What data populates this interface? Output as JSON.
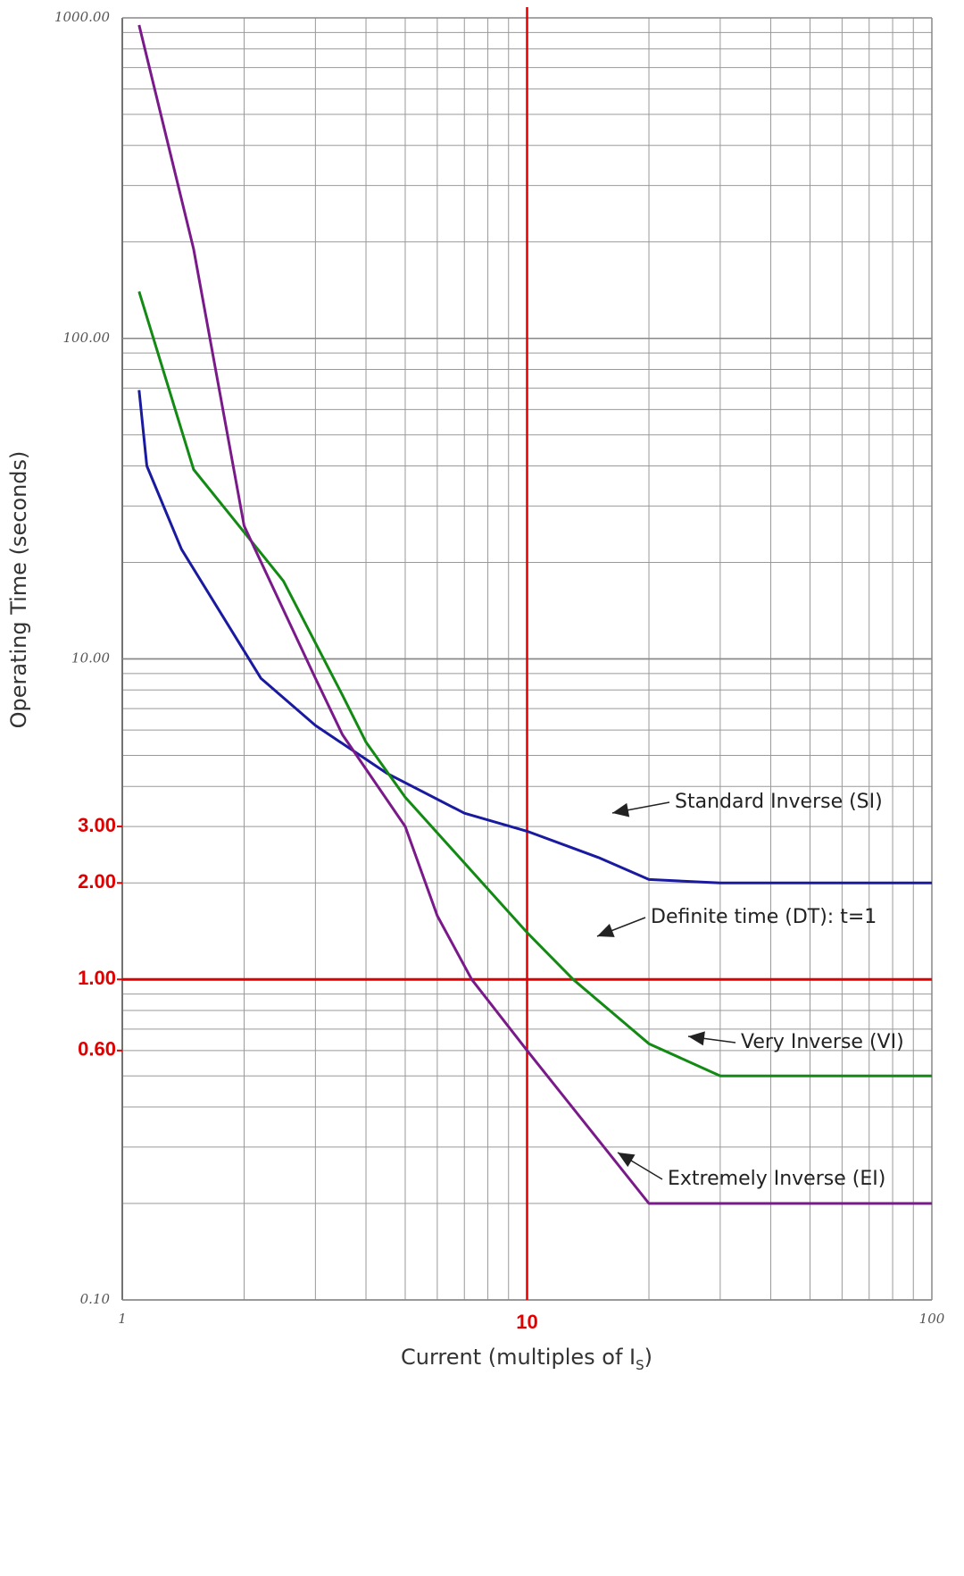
{
  "chart_data": {
    "type": "line",
    "xlabel": "Current (multiples of I",
    "xlabel_sub": "S",
    "xlabel_end": ")",
    "ylabel": "Operating Time (seconds)",
    "xscale": "log",
    "yscale": "log",
    "grid": true,
    "minor_grid": true,
    "xlim": [
      1,
      100
    ],
    "ylim": [
      0.1,
      1000
    ],
    "xticks": [
      1,
      100
    ],
    "highlight_xticks": [
      10
    ],
    "yticks": [
      {
        "value": 0.1,
        "label": "0.10"
      },
      {
        "value": 10,
        "label": "10.00"
      },
      {
        "value": 100,
        "label": "100.00"
      },
      {
        "value": 1000,
        "label": "1000.00"
      }
    ],
    "highlight_yticks": [
      {
        "value": 0.6,
        "label": "0.60"
      },
      {
        "value": 1,
        "label": "1.00"
      },
      {
        "value": 2,
        "label": "2.00"
      },
      {
        "value": 3,
        "label": "3.00"
      }
    ],
    "highlight_color": "#e00000",
    "series": [
      {
        "name": "Standard Inverse (SI)",
        "color": "#1a1aa0",
        "x": [
          1.1,
          1.15,
          1.4,
          2.2,
          3,
          4.5,
          7,
          10,
          15,
          20,
          30,
          100
        ],
        "values": [
          69,
          40,
          22,
          8.7,
          6.2,
          4.4,
          3.3,
          2.9,
          2.4,
          2.05,
          2.0,
          2.0
        ]
      },
      {
        "name": "Definite time (DT): t=1",
        "color": "#e00000",
        "x": [
          1,
          100
        ],
        "values": [
          1,
          1
        ]
      },
      {
        "name": "Very Inverse (VI)",
        "color": "#138a13",
        "x": [
          1.1,
          1.5,
          2.5,
          3.5,
          4,
          5,
          10,
          13,
          20,
          30,
          100
        ],
        "values": [
          140,
          39,
          17.5,
          7.7,
          5.5,
          3.7,
          1.4,
          1.0,
          0.63,
          0.5,
          0.5
        ]
      },
      {
        "name": "Extremely Inverse (EI)",
        "color": "#7a1a8a",
        "x": [
          1.1,
          1.5,
          2,
          3,
          3.5,
          5,
          6,
          7.3,
          10,
          20,
          100
        ],
        "values": [
          950,
          190,
          26,
          8.7,
          5.8,
          3.0,
          1.58,
          1.0,
          0.6,
          0.2,
          0.2
        ]
      }
    ]
  }
}
